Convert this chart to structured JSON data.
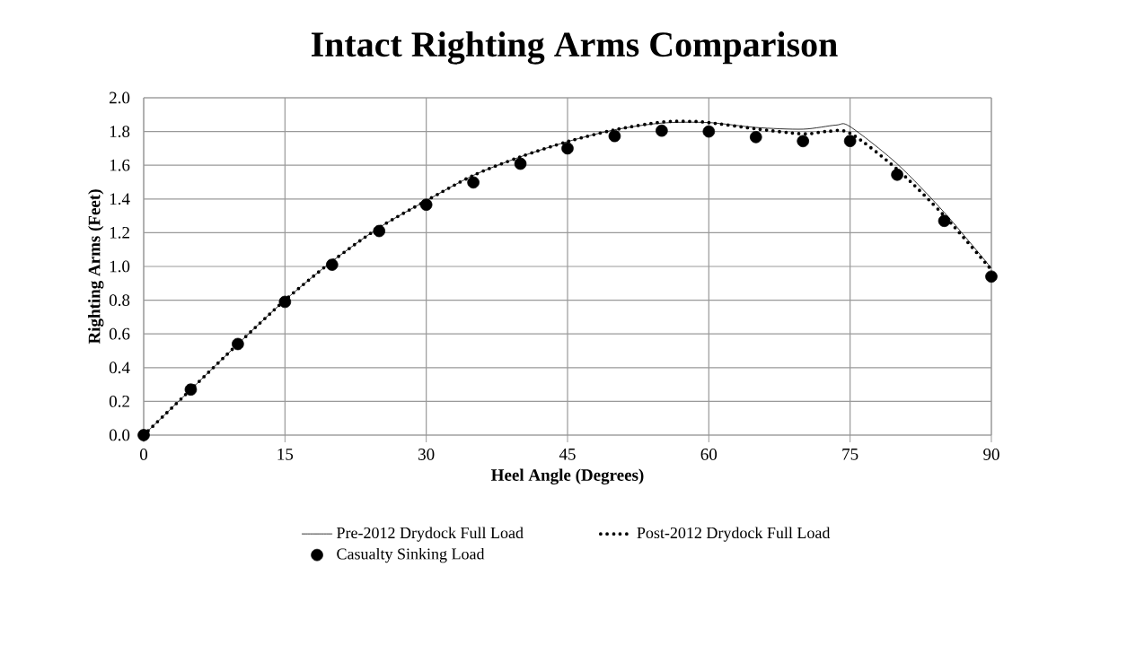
{
  "chart_data": {
    "type": "line",
    "title": "Intact Righting Arms Comparison",
    "xlabel": "Heel Angle (Degrees)",
    "ylabel": "Righting Arms (Feet)",
    "xlim": [
      0,
      90
    ],
    "xticks": [
      0,
      15,
      30,
      45,
      60,
      75,
      90
    ],
    "ylim": [
      0,
      2
    ],
    "yticks": [
      {
        "value": 0,
        "label": "0.0"
      },
      {
        "value": 0.2,
        "label": "0.2"
      },
      {
        "value": 0.4,
        "label": "0.4"
      },
      {
        "value": 0.6,
        "label": "0.6"
      },
      {
        "value": 0.8,
        "label": "0.8"
      },
      {
        "value": 1.0,
        "label": "1.0"
      },
      {
        "value": 1.2,
        "label": "1.2"
      },
      {
        "value": 1.4,
        "label": "1.4"
      },
      {
        "value": 1.6,
        "label": "1.6"
      },
      {
        "value": 1.8,
        "label": "1.8"
      },
      {
        "value": 2.0,
        "label": "2.0"
      }
    ],
    "grid": true,
    "legend": "bottom",
    "series": [
      {
        "name": "Pre-2012 Drydock Full Load",
        "color": "#000000",
        "marker": "none",
        "line_style": "solid",
        "x": [
          0,
          5,
          10,
          15,
          20,
          25,
          30,
          35,
          40,
          45,
          50,
          55,
          60,
          65,
          70,
          73.5,
          75,
          80,
          85,
          90
        ],
        "values": [
          0,
          0.27,
          0.54,
          0.8,
          1.03,
          1.23,
          1.39,
          1.54,
          1.65,
          1.74,
          1.81,
          1.85,
          1.853,
          1.824,
          1.814,
          1.838,
          1.829,
          1.608,
          1.32,
          0.99
        ]
      },
      {
        "name": "Post-2012 Drydock Full Load",
        "color": "#000000",
        "marker": "none",
        "line_style": "dotted",
        "x": [
          0,
          5,
          10,
          15,
          20,
          25,
          30,
          35,
          40,
          45,
          50,
          55,
          58,
          60,
          65,
          70,
          72.5,
          75,
          80,
          85,
          90
        ],
        "values": [
          0,
          0.27,
          0.54,
          0.8,
          1.03,
          1.23,
          1.39,
          1.54,
          1.65,
          1.74,
          1.81,
          1.856,
          1.86,
          1.853,
          1.816,
          1.786,
          1.8,
          1.79,
          1.576,
          1.3,
          0.98
        ]
      },
      {
        "name": "Casualty Sinking Load",
        "type": "scatter",
        "color": "#000000",
        "marker": "circle",
        "x": [
          0,
          5,
          10,
          15,
          20,
          25,
          30,
          35,
          40,
          45,
          50,
          55,
          60,
          65,
          70,
          75,
          80,
          85,
          90
        ],
        "values": [
          0,
          0.27,
          0.54,
          0.79,
          1.01,
          1.21,
          1.366,
          1.498,
          1.609,
          1.7,
          1.773,
          1.805,
          1.8,
          1.767,
          1.743,
          1.744,
          1.544,
          1.27,
          0.94
        ]
      }
    ]
  }
}
